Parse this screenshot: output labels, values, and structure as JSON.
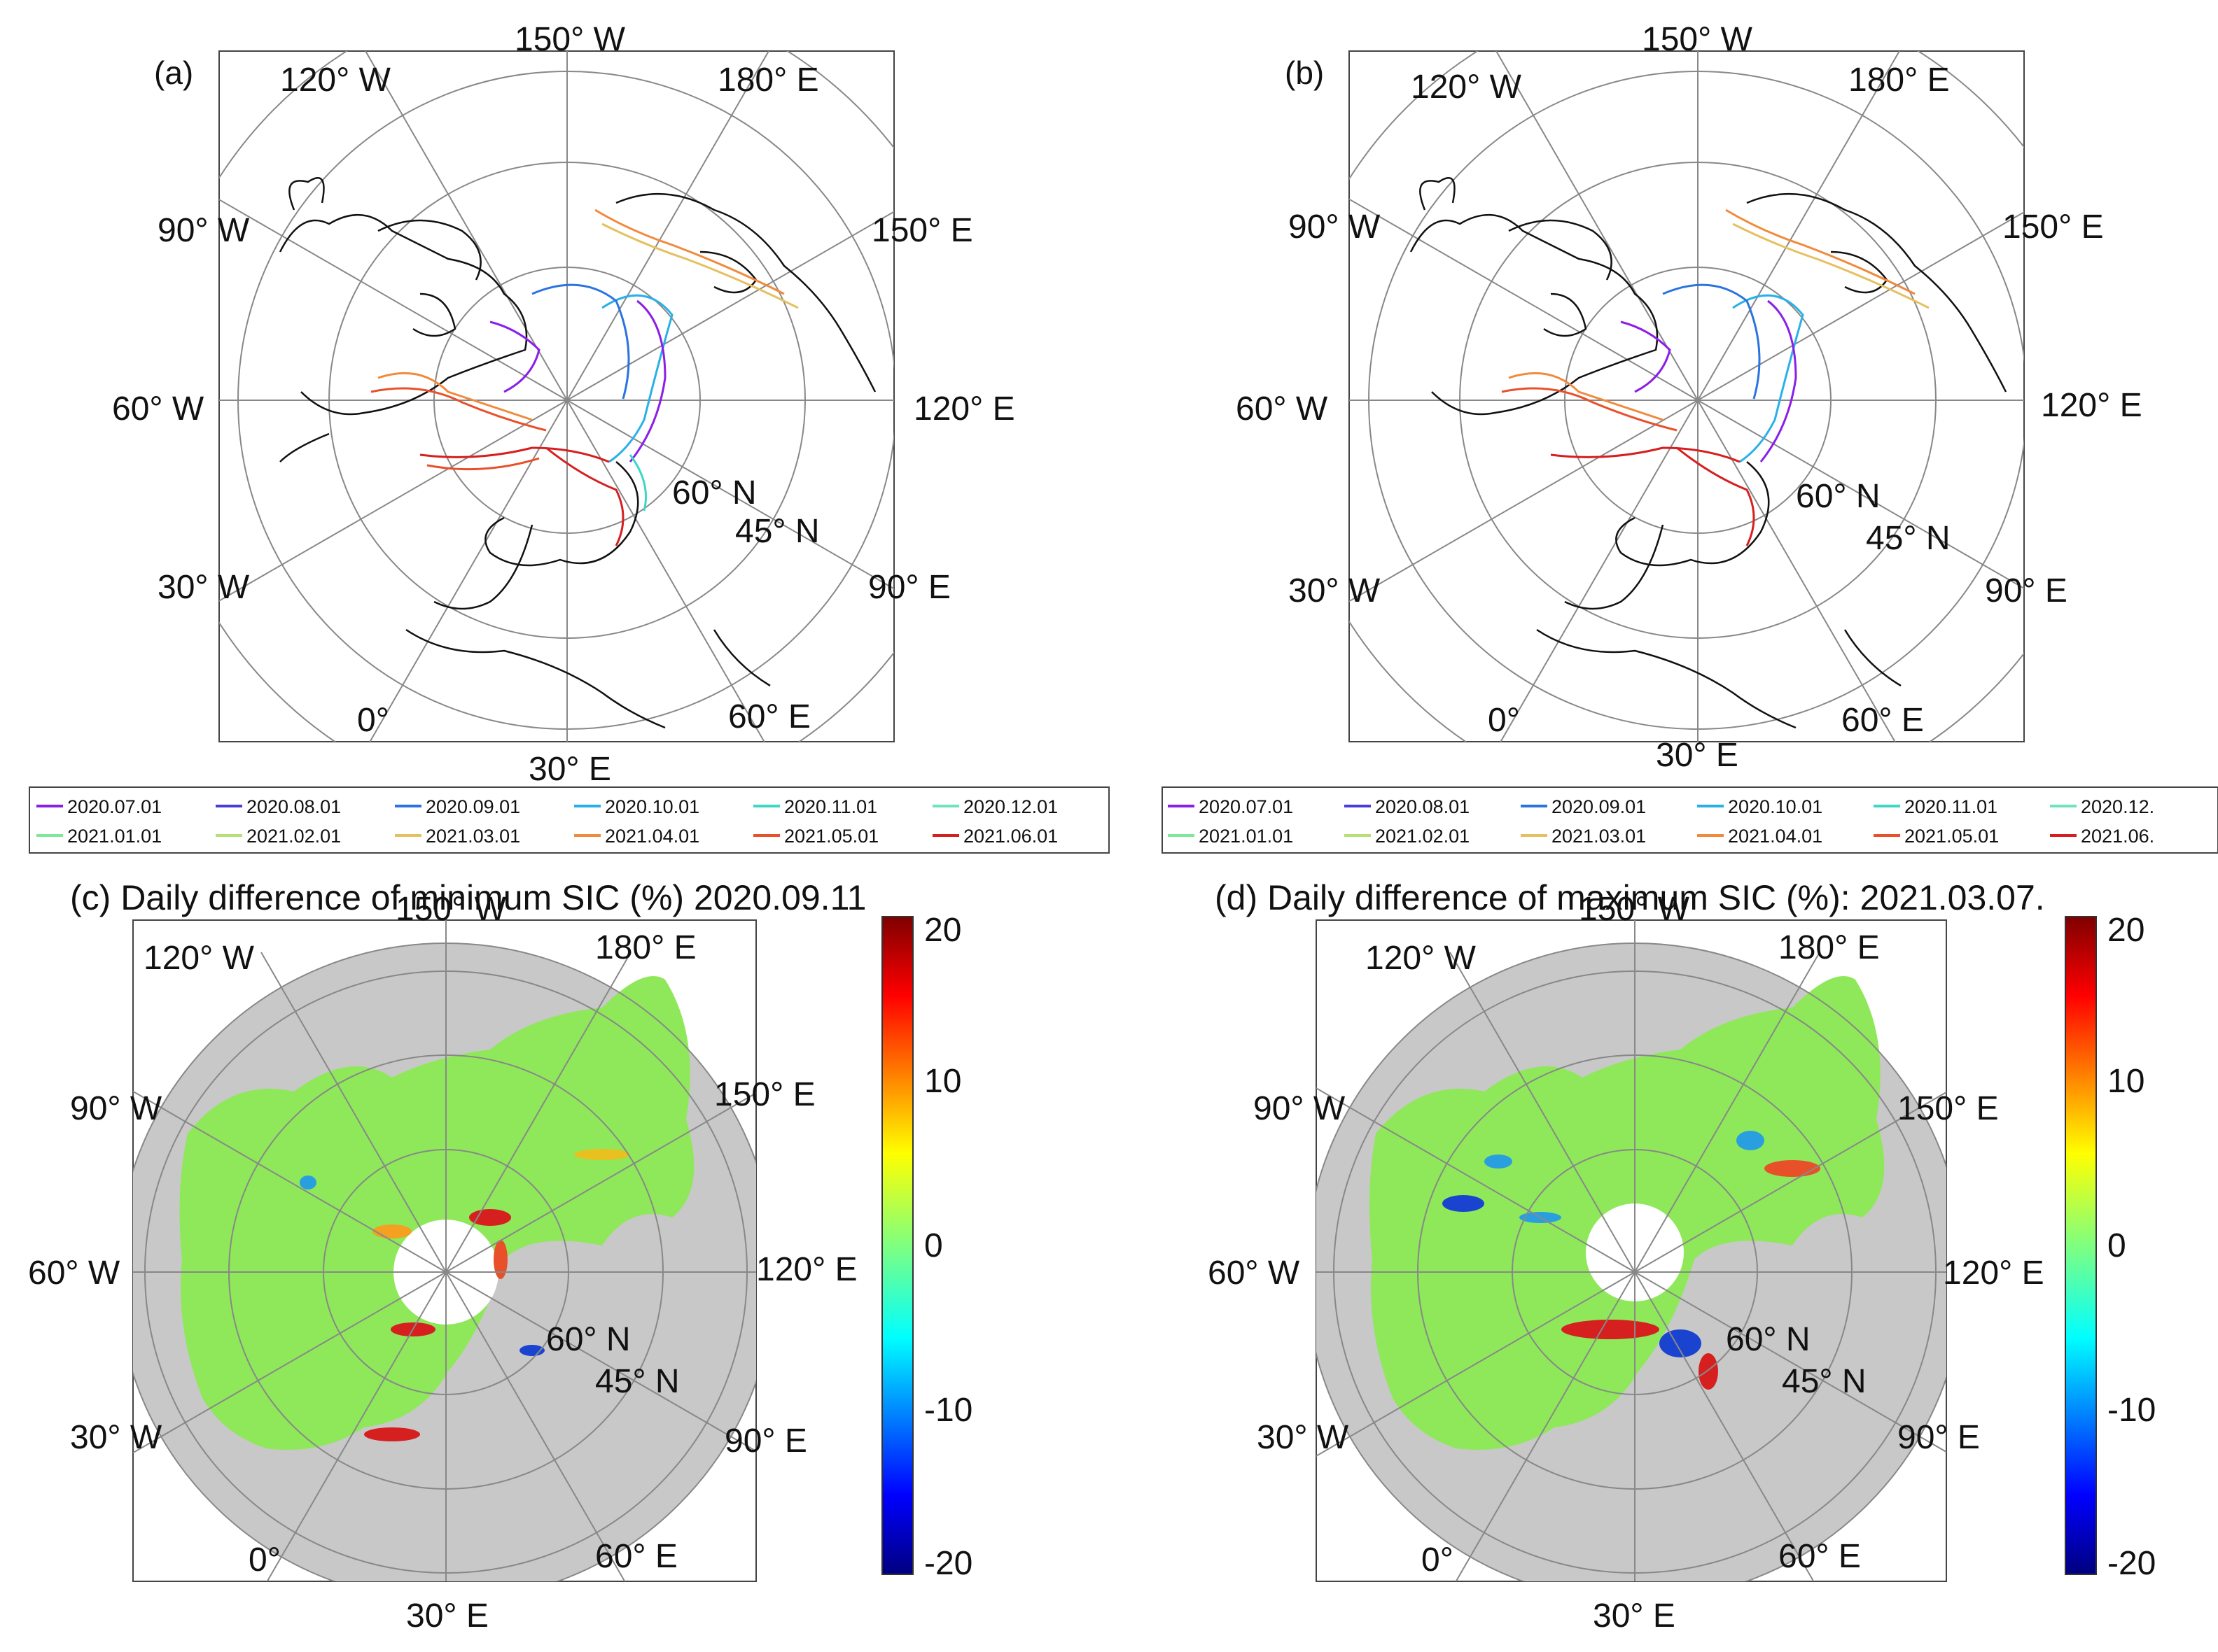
{
  "panels": [
    {
      "id": "a",
      "label": "(a)",
      "title": "",
      "map_type": "contours",
      "lon_labels": [
        "150° W",
        "180° E",
        "150° E",
        "120° E",
        "90° E",
        "60° E",
        "30° E",
        "0°",
        "30° W",
        "60° W",
        "90° W",
        "120° W"
      ],
      "lat_labels": [
        "60° N",
        "45° N"
      ]
    },
    {
      "id": "b",
      "label": "(b)",
      "title": "",
      "map_type": "contours",
      "lon_labels": [
        "150° W",
        "180° E",
        "150° E",
        "120° E",
        "90° E",
        "60° E",
        "30° E",
        "0°",
        "30° W",
        "60° W",
        "90° W",
        "120° W"
      ],
      "lat_labels": [
        "60° N",
        "45° N"
      ]
    },
    {
      "id": "c",
      "label": "",
      "title": "(c) Daily difference of minimum SIC (%) 2020.09.11",
      "map_type": "field",
      "lon_labels": [
        "150° W",
        "180° E",
        "150° E",
        "120° E",
        "90° E",
        "60° E",
        "30° E",
        "0°",
        "30° W",
        "60° W",
        "90° W",
        "120° W"
      ],
      "lat_labels": [
        "60° N",
        "45° N"
      ]
    },
    {
      "id": "d",
      "label": "",
      "title": "(d) Daily difference of maximum SIC (%): 2021.03.07.",
      "map_type": "field",
      "lon_labels": [
        "150° W",
        "180° E",
        "150° E",
        "120° E",
        "90° E",
        "60° E",
        "30° E",
        "0°",
        "30° W",
        "60° W",
        "90° W",
        "120° W"
      ],
      "lat_labels": [
        "60° N",
        "45° N"
      ]
    }
  ],
  "legend": {
    "a": [
      "2020.07.01",
      "2020.08.01",
      "2020.09.01",
      "2020.10.01",
      "2020.11.01",
      "2020.12.01",
      "2021.01.01",
      "2021.02.01",
      "2021.03.01",
      "2021.04.01",
      "2021.05.01",
      "2021.06.01"
    ],
    "b": [
      "2020.07.01",
      "2020.08.01",
      "2020.09.01",
      "2020.10.01",
      "2020.11.01",
      "2020.12.",
      "2021.01.01",
      "2021.02.01",
      "2021.03.01",
      "2021.04.01",
      "2021.05.01",
      "2021.06."
    ],
    "colors": [
      "#8b1fe8",
      "#4a3dd9",
      "#2b74e0",
      "#2ab0e8",
      "#3dd6c7",
      "#6ee3c0",
      "#7ee89a",
      "#b6e077",
      "#e6c060",
      "#f08a3c",
      "#e8502a",
      "#d61f1f"
    ]
  },
  "colorbar": {
    "ticks": [
      "20",
      "10",
      "0",
      "-10",
      "-20"
    ],
    "min": -20,
    "max": 20
  },
  "colors": {
    "land_gray": "#c8c8c8",
    "ocean_green": "#8ee85a",
    "frame": "#444444",
    "grid": "#888888"
  },
  "chart_data": {
    "type": "map",
    "projection": "north polar stereographic",
    "latitude_circles_deg": [
      75,
      60,
      45,
      30
    ],
    "meridian_step_deg": 30,
    "contour_dates_panel_a": [
      "2020.07.01",
      "2020.08.01",
      "2020.09.01",
      "2020.10.01",
      "2020.11.01",
      "2020.12.01",
      "2021.01.01",
      "2021.02.01",
      "2021.03.01",
      "2021.04.01",
      "2021.05.01",
      "2021.06.01"
    ],
    "colorbar_range": [
      -20,
      20
    ],
    "colorbar_ticks": [
      20,
      10,
      0,
      -10,
      -20
    ],
    "units": "%"
  }
}
